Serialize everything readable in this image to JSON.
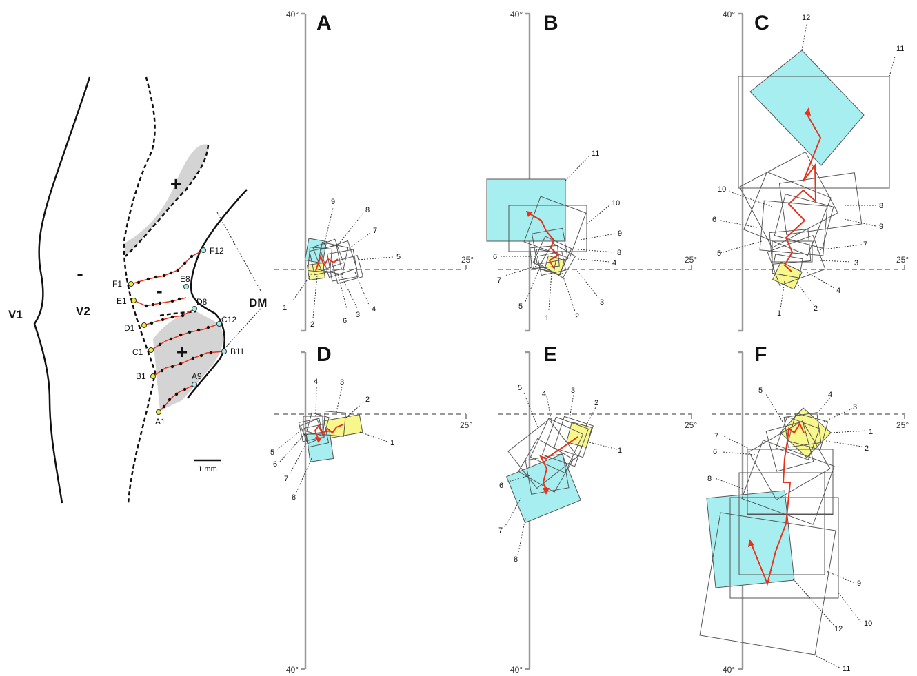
{
  "map": {
    "area_labels": [
      "V1",
      "V2",
      "DM"
    ],
    "polarity_signs": [
      "+",
      "-",
      "-",
      "+"
    ],
    "site_labels": [
      "F1",
      "F12",
      "E1",
      "E8",
      "D1",
      "D8",
      "C1",
      "C12",
      "B1",
      "B11",
      "A1",
      "A9"
    ],
    "scale_bar": "1 mm"
  },
  "axes": {
    "upper_limit": "40°",
    "lower_limit": "40°",
    "horizontal_limit": "25°"
  },
  "panels": [
    {
      "letter": "A",
      "field_numbers": [
        "1",
        "2",
        "3",
        "4",
        "5",
        "6",
        "7",
        "8",
        "9"
      ]
    },
    {
      "letter": "B",
      "field_numbers": [
        "1",
        "2",
        "3",
        "4",
        "5",
        "6",
        "7",
        "8",
        "9",
        "10",
        "11"
      ]
    },
    {
      "letter": "C",
      "field_numbers": [
        "1",
        "2",
        "3",
        "4",
        "5",
        "6",
        "7",
        "8",
        "9",
        "10",
        "11",
        "12"
      ]
    },
    {
      "letter": "D",
      "field_numbers": [
        "1",
        "2",
        "3",
        "4",
        "5",
        "6",
        "7",
        "8"
      ]
    },
    {
      "letter": "E",
      "field_numbers": [
        "1",
        "2",
        "3",
        "4",
        "5",
        "6",
        "7",
        "8"
      ]
    },
    {
      "letter": "F",
      "field_numbers": [
        "1",
        "2",
        "3",
        "4",
        "5",
        "6",
        "7",
        "8",
        "9",
        "10",
        "11",
        "12"
      ]
    }
  ],
  "colors": {
    "first_field": "#f7f78c",
    "last_field": "#a6eef0",
    "trajectory": "#e8331c",
    "outline": "#555555",
    "gray_region": "#d4d4d4",
    "first_site": "#f2ee38",
    "last_site": "#a6eef0"
  }
}
